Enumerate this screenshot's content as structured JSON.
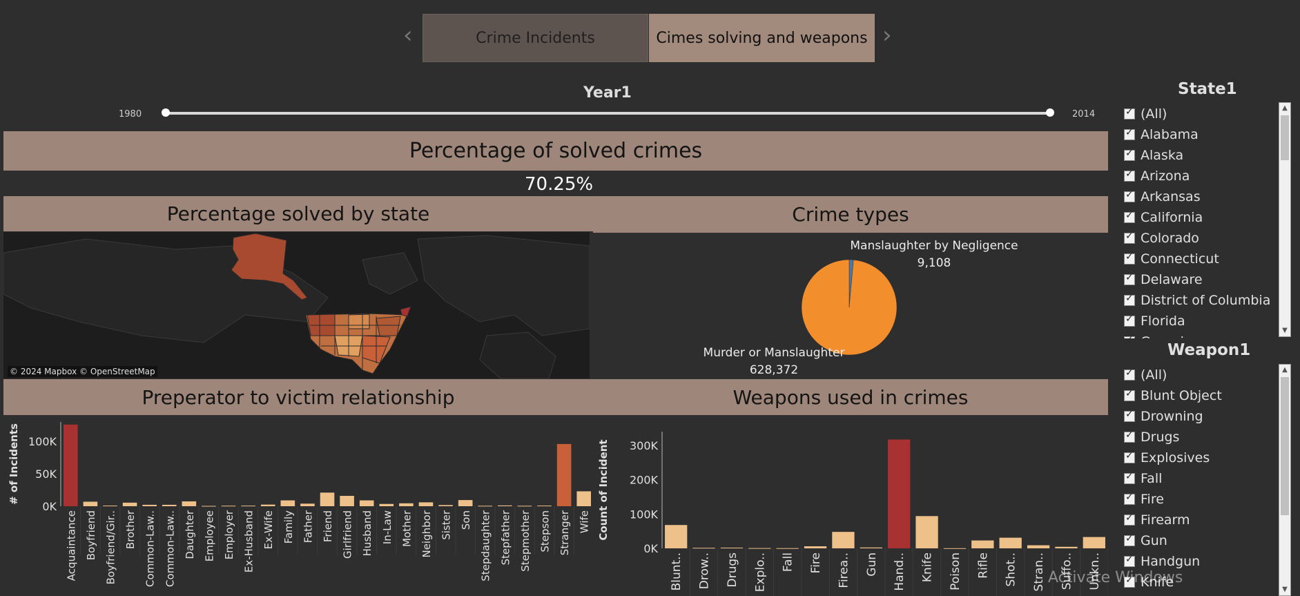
{
  "tabs": [
    {
      "label": "Crime Incidents",
      "active": false
    },
    {
      "label": "Cimes solving and weapons",
      "active": true
    }
  ],
  "slider": {
    "title": "Year1",
    "min": "1980",
    "max": "2014"
  },
  "kpi": {
    "title": "Percentage of solved crimes",
    "value": "70.25%"
  },
  "map": {
    "title": "Percentage solved by state",
    "attribution": "© 2024 Mapbox © OpenStreetMap"
  },
  "filters": {
    "state": {
      "title": "State1",
      "items": [
        "(All)",
        "Alabama",
        "Alaska",
        "Arizona",
        "Arkansas",
        "California",
        "Colorado",
        "Connecticut",
        "Delaware",
        "District of Columbia",
        "Florida",
        "Georgia"
      ]
    },
    "weapon": {
      "title": "Weapon1",
      "items": [
        "(All)",
        "Blunt Object",
        "Drowning",
        "Drugs",
        "Explosives",
        "Fall",
        "Fire",
        "Firearm",
        "Gun",
        "Handgun",
        "Knife"
      ]
    }
  },
  "watermark": "Activate Windows",
  "colors": {
    "high": "#a83232",
    "mid": "#c8603a",
    "low": "#eec08a",
    "pie_main": "#f28e2b",
    "pie_minor": "#4e79a7",
    "banner": "#9e877a"
  },
  "chart_data": [
    {
      "type": "pie",
      "title": "Crime types",
      "slices": [
        {
          "label": "Murder or Manslaughter",
          "value": 628372,
          "display": "628,372"
        },
        {
          "label": "Manslaughter by Negligence",
          "value": 9108,
          "display": "9,108"
        }
      ]
    },
    {
      "type": "bar",
      "title": "Preperator to victim relationship",
      "ylabel": "# of Incidents",
      "ylim": [
        0,
        130000
      ],
      "yticks": [
        {
          "v": 0,
          "t": "0K"
        },
        {
          "v": 50000,
          "t": "50K"
        },
        {
          "v": 100000,
          "t": "100K"
        }
      ],
      "categories": [
        "Acquaintance",
        "Boyfriend",
        "Boyfriend/Gir..",
        "Brother",
        "Common-Law..",
        "Common-Law..",
        "Daughter",
        "Employee",
        "Employer",
        "Ex-Husband",
        "Ex-Wife",
        "Family",
        "Father",
        "Friend",
        "Girlfriend",
        "Husband",
        "In-Law",
        "Mother",
        "Neighbor",
        "Sister",
        "Son",
        "Stepdaughter",
        "Stepfather",
        "Stepmother",
        "Stepson",
        "Stranger",
        "Wife"
      ],
      "values": [
        126000,
        7000,
        1000,
        5500,
        2200,
        2200,
        7500,
        500,
        800,
        900,
        2500,
        9000,
        4000,
        21000,
        16000,
        9000,
        3500,
        4500,
        6000,
        1800,
        9500,
        700,
        1200,
        700,
        1000,
        96000,
        23000
      ]
    },
    {
      "type": "bar",
      "title": "Weapons used in crimes",
      "ylabel": "Count of Incident",
      "ylim": [
        0,
        340000
      ],
      "yticks": [
        {
          "v": 0,
          "t": "0K"
        },
        {
          "v": 100000,
          "t": "100K"
        },
        {
          "v": 200000,
          "t": "200K"
        },
        {
          "v": 300000,
          "t": "300K"
        }
      ],
      "categories": [
        "Blunt..",
        "Drow..",
        "Drugs",
        "Explo..",
        "Fall",
        "Fire",
        "Firea..",
        "Gun",
        "Hand..",
        "Knife",
        "Poison",
        "Rifle",
        "Shot..",
        "Stran..",
        "Suffo..",
        "Unkn.."
      ],
      "values": [
        68000,
        1500,
        2000,
        800,
        600,
        6000,
        48000,
        2500,
        317000,
        94000,
        400,
        23000,
        31000,
        9000,
        4500,
        33000
      ]
    }
  ]
}
